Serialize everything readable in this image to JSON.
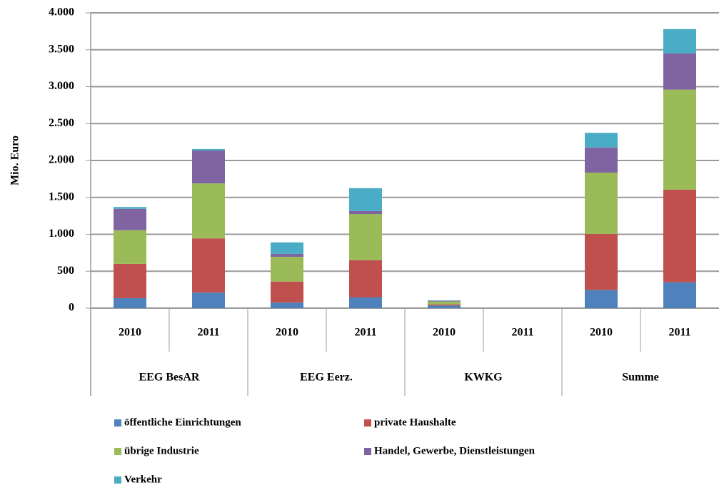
{
  "chart_data": {
    "type": "stacked-bar",
    "y_label": "Mio. Euro",
    "groups": [
      "EEG BesAR",
      "EEG Eerz.",
      "KWKG",
      "Summe"
    ],
    "categories": [
      "2010",
      "2011",
      "2010",
      "2011",
      "2010",
      "2011",
      "2010",
      "2011"
    ],
    "series": [
      {
        "name": "öffentliche Einrichtungen",
        "color": "#4f81bd",
        "values": [
          135,
          210,
          75,
          145,
          35,
          0,
          245,
          350
        ]
      },
      {
        "name": "private Haushalte",
        "color": "#c0504d",
        "values": [
          465,
          735,
          285,
          505,
          15,
          0,
          760,
          1255
        ]
      },
      {
        "name": "übrige Industrie",
        "color": "#9bbb59",
        "values": [
          455,
          745,
          335,
          625,
          40,
          0,
          830,
          1355
        ]
      },
      {
        "name": "Handel, Gewerbe, Dienstleistungen",
        "color": "#8064a2",
        "values": [
          290,
          445,
          40,
          40,
          10,
          0,
          340,
          490
        ]
      },
      {
        "name": "Verkehr",
        "color": "#4bacc6",
        "values": [
          25,
          20,
          155,
          310,
          5,
          0,
          200,
          330
        ]
      }
    ],
    "ylim": [
      0,
      4000
    ],
    "yticks": [
      0,
      500,
      {
        "value": 1000,
        "label": "1.000"
      },
      {
        "value": 1500,
        "label": "1.500"
      },
      {
        "value": 2000,
        "label": "2.000"
      },
      {
        "value": 2500,
        "label": "2.500"
      },
      {
        "value": 3000,
        "label": "3.000"
      },
      {
        "value": 3500,
        "label": "3.500"
      },
      {
        "value": 4000,
        "label": "4.000"
      }
    ],
    "grid": true
  }
}
